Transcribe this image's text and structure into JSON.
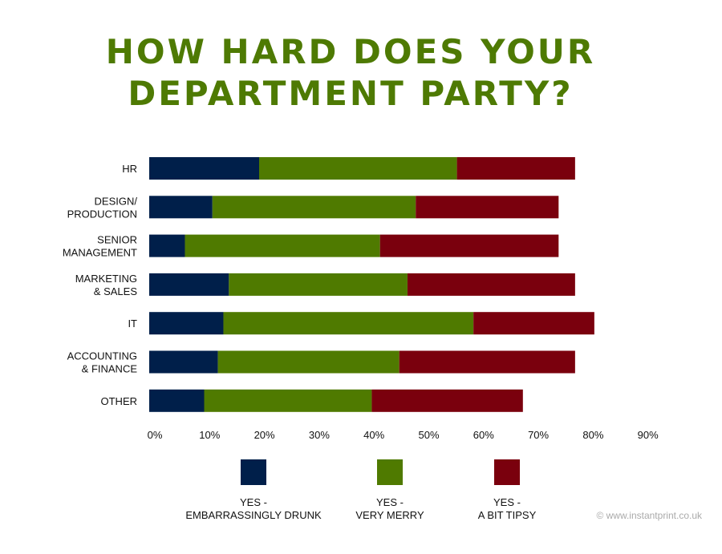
{
  "chart_data": {
    "type": "bar",
    "orientation": "horizontal",
    "stacked": true,
    "title_lines": [
      "HOW HARD DOES YOUR",
      "DEPARTMENT PARTY?"
    ],
    "categories": [
      [
        "HR"
      ],
      [
        "DESIGN/",
        "PRODUCTION"
      ],
      [
        "SENIOR",
        "MANAGEMENT"
      ],
      [
        "MARKETING",
        "& SALES"
      ],
      [
        "IT"
      ],
      [
        "ACCOUNTING",
        "& FINANCE"
      ],
      [
        "OTHER"
      ]
    ],
    "series": [
      {
        "name": "YES - EMBARRASSINGLY DRUNK",
        "legend_lines": [
          "YES -",
          "EMBARRASSINGLY DRUNK"
        ],
        "color": "#001f4a",
        "values": [
          20,
          11.5,
          6.5,
          14.5,
          13.5,
          12.5,
          10
        ]
      },
      {
        "name": "YES - VERY MERRY",
        "legend_lines": [
          "YES -",
          "VERY MERRY"
        ],
        "color": "#4f7a00",
        "values": [
          36,
          37,
          35.5,
          32.5,
          45.5,
          33,
          30.5
        ]
      },
      {
        "name": "YES - A BIT TIPSY",
        "legend_lines": [
          "YES -",
          "A BIT TIPSY"
        ],
        "color": "#7a000d",
        "values": [
          21.5,
          26,
          32.5,
          30.5,
          22,
          32,
          27.5
        ]
      }
    ],
    "xlim": [
      0,
      90
    ],
    "xticks": [
      "0%",
      "10%",
      "20%",
      "30%",
      "40%",
      "50%",
      "60%",
      "70%",
      "80%",
      "90%"
    ],
    "grid": false,
    "legend_position": "bottom"
  },
  "footer": {
    "copyright": "© www.instantprint.co.uk"
  }
}
